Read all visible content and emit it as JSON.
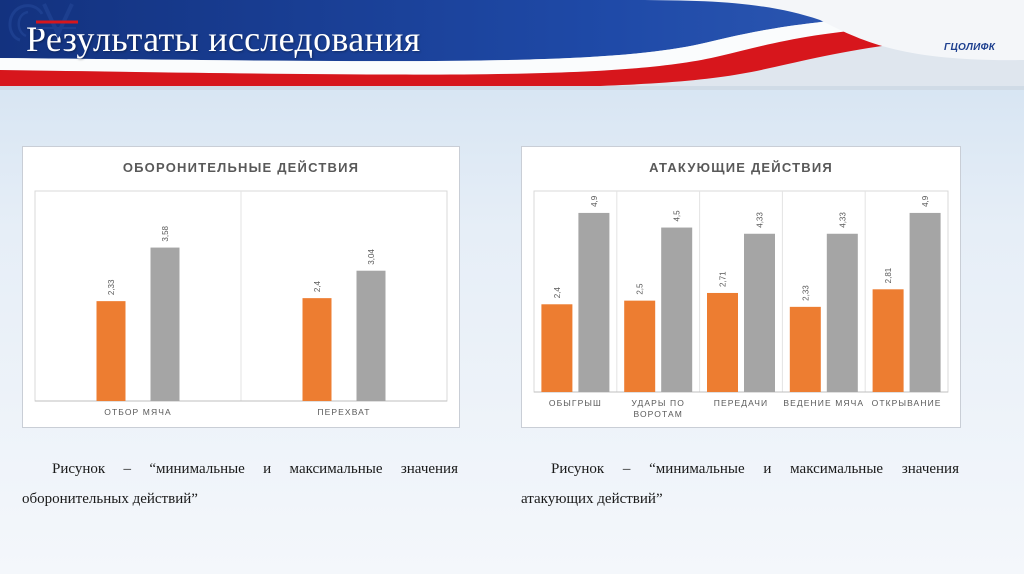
{
  "header": {
    "title": "Результаты исследования",
    "logo_text": "ГЦОЛИФК",
    "colors": {
      "blue": "#1f3f95",
      "red": "#d7161c",
      "white": "#ffffff"
    }
  },
  "chart_data": [
    {
      "type": "bar",
      "title": "ОБОРОНИТЕЛЬНЫЕ ДЕЙСТВИЯ",
      "categories": [
        "ОТБОР МЯЧА",
        "ПЕРЕХВАТ"
      ],
      "series": [
        {
          "values": [
            2.33,
            2.4
          ],
          "value_labels": [
            "2,33",
            "2,4"
          ],
          "color": "#ed7d31"
        },
        {
          "values": [
            3.58,
            3.04
          ],
          "value_labels": [
            "3,58",
            "3,04"
          ],
          "color": "#a5a5a5"
        }
      ],
      "ylim": [
        0,
        4.9
      ],
      "grid": "vertical",
      "legend": "none"
    },
    {
      "type": "bar",
      "title": "АТАКУЮЩИЕ ДЕЙСТВИЯ",
      "categories": [
        "ОБЫГРЫШ",
        "УДАРЫ ПО ВОРОТАМ",
        "ПЕРЕДАЧИ",
        "ВЕДЕНИЕ МЯЧА",
        "ОТКРЫВАНИЕ"
      ],
      "category_lines": [
        [
          "ОБЫГРЫШ"
        ],
        [
          "УДАРЫ ПО",
          "ВОРОТАМ"
        ],
        [
          "ПЕРЕДАЧИ"
        ],
        [
          "ВЕДЕНИЕ МЯЧА"
        ],
        [
          "ОТКРЫВАНИЕ"
        ]
      ],
      "series": [
        {
          "values": [
            2.4,
            2.5,
            2.71,
            2.33,
            2.81
          ],
          "value_labels": [
            "2,4",
            "2,5",
            "2,71",
            "2,33",
            "2,81"
          ],
          "color": "#ed7d31"
        },
        {
          "values": [
            4.9,
            4.5,
            4.33,
            4.33,
            4.9
          ],
          "value_labels": [
            "4,9",
            "4,5",
            "4,33",
            "4,33",
            "4,9"
          ],
          "color": "#a5a5a5"
        }
      ],
      "ylim": [
        0,
        5.5
      ],
      "grid": "vertical",
      "legend": "none"
    }
  ],
  "captions": [
    {
      "line1": "Рисунок – “минимальные и максимальные значения",
      "line2": "оборонительных действий”"
    },
    {
      "line1": "Рисунок – “минимальные и максимальные значения",
      "line2": "атакующих действий”"
    }
  ]
}
